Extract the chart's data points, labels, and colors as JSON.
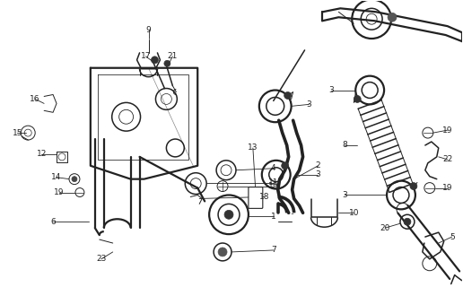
{
  "bg_color": "#ffffff",
  "line_color": "#222222",
  "label_color": "#000000",
  "fig_width": 5.16,
  "fig_height": 3.2,
  "dpi": 100,
  "lw_thin": 0.7,
  "lw_med": 1.1,
  "lw_thick": 1.6,
  "label_fontsize": 6.5
}
